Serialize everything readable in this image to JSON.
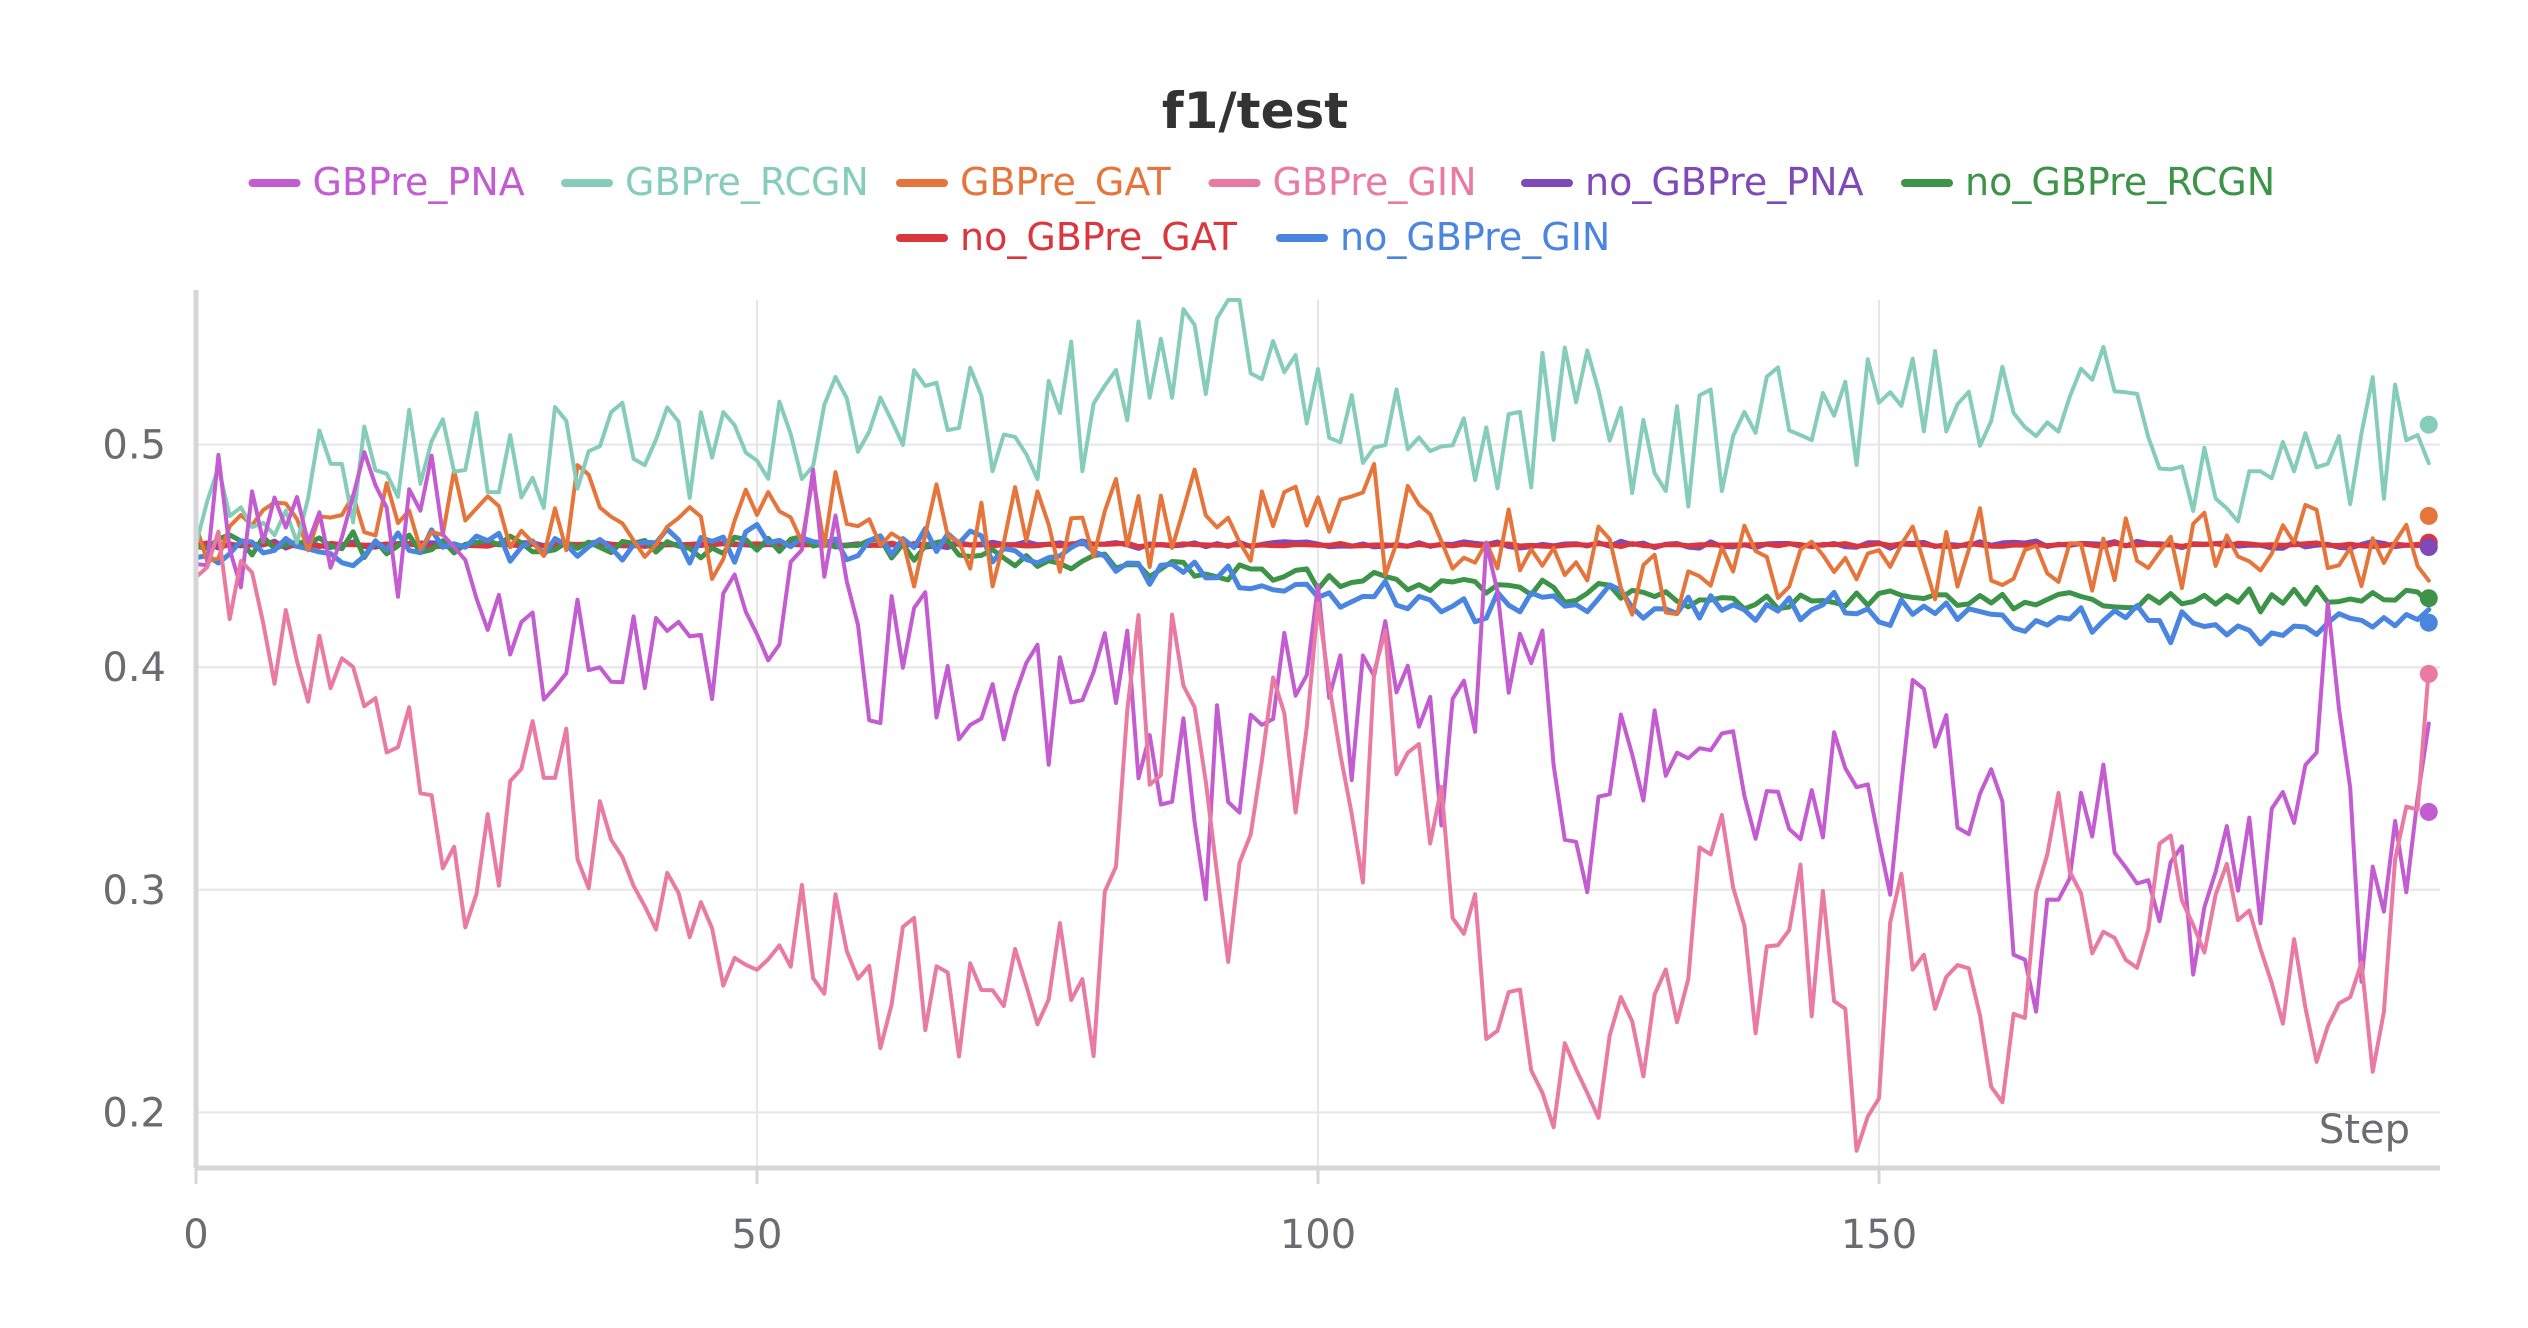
{
  "chart_data": {
    "type": "line",
    "title": "f1/test",
    "xlabel": "Step",
    "ylabel": "",
    "xlim": [
      0,
      200
    ],
    "ylim": [
      0.175,
      0.565
    ],
    "xticks": [
      0,
      50,
      100,
      150
    ],
    "yticks": [
      0.2,
      0.3,
      0.4,
      0.5
    ],
    "grid": true,
    "legend_position": "top",
    "series": [
      {
        "name": "GBPre_PNA",
        "color": "#c35bd1",
        "samples": 200,
        "mean_points": [
          [
            0,
            0.47
          ],
          [
            20,
            0.47
          ],
          [
            27,
            0.43
          ],
          [
            30,
            0.42
          ],
          [
            40,
            0.41
          ],
          [
            50,
            0.41
          ],
          [
            55,
            0.46
          ],
          [
            60,
            0.42
          ],
          [
            70,
            0.38
          ],
          [
            80,
            0.39
          ],
          [
            90,
            0.34
          ],
          [
            95,
            0.4
          ],
          [
            100,
            0.4
          ],
          [
            106,
            0.39
          ],
          [
            112,
            0.36
          ],
          [
            115,
            0.41
          ],
          [
            120,
            0.41
          ],
          [
            122,
            0.31
          ],
          [
            126,
            0.34
          ],
          [
            130,
            0.36
          ],
          [
            140,
            0.33
          ],
          [
            150,
            0.33
          ],
          [
            155,
            0.38
          ],
          [
            160,
            0.33
          ],
          [
            163,
            0.28
          ],
          [
            167,
            0.31
          ],
          [
            170,
            0.33
          ],
          [
            180,
            0.28
          ],
          [
            188,
            0.34
          ],
          [
            190,
            0.4
          ],
          [
            193,
            0.3
          ],
          [
            199,
            0.335
          ]
        ],
        "amplitude": 0.03,
        "seed": 11
      },
      {
        "name": "GBPre_RCGN",
        "color": "#86cdb9",
        "samples": 200,
        "mean_points": [
          [
            0,
            0.47
          ],
          [
            10,
            0.48
          ],
          [
            20,
            0.5
          ],
          [
            40,
            0.5
          ],
          [
            60,
            0.51
          ],
          [
            75,
            0.51
          ],
          [
            90,
            0.55
          ],
          [
            100,
            0.53
          ],
          [
            115,
            0.5
          ],
          [
            125,
            0.52
          ],
          [
            130,
            0.49
          ],
          [
            140,
            0.52
          ],
          [
            150,
            0.52
          ],
          [
            160,
            0.51
          ],
          [
            170,
            0.54
          ],
          [
            175,
            0.5
          ],
          [
            180,
            0.47
          ],
          [
            190,
            0.5
          ],
          [
            199,
            0.51
          ]
        ],
        "amplitude": 0.022,
        "seed": 23
      },
      {
        "name": "GBPre_GAT",
        "color": "#e5753a",
        "samples": 200,
        "mean_points": [
          [
            0,
            0.47
          ],
          [
            30,
            0.47
          ],
          [
            60,
            0.46
          ],
          [
            100,
            0.47
          ],
          [
            130,
            0.44
          ],
          [
            160,
            0.45
          ],
          [
            199,
            0.45
          ]
        ],
        "amplitude": 0.018,
        "seed": 37
      },
      {
        "name": "GBPre_GIN",
        "color": "#e97aa2",
        "samples": 200,
        "mean_points": [
          [
            0,
            0.47
          ],
          [
            8,
            0.42
          ],
          [
            12,
            0.4
          ],
          [
            20,
            0.38
          ],
          [
            25,
            0.3
          ],
          [
            30,
            0.38
          ],
          [
            35,
            0.31
          ],
          [
            40,
            0.3
          ],
          [
            50,
            0.28
          ],
          [
            60,
            0.26
          ],
          [
            70,
            0.25
          ],
          [
            80,
            0.25
          ],
          [
            84,
            0.38
          ],
          [
            88,
            0.4
          ],
          [
            92,
            0.3
          ],
          [
            100,
            0.4
          ],
          [
            103,
            0.3
          ],
          [
            106,
            0.4
          ],
          [
            110,
            0.34
          ],
          [
            115,
            0.25
          ],
          [
            120,
            0.22
          ],
          [
            126,
            0.21
          ],
          [
            130,
            0.24
          ],
          [
            135,
            0.32
          ],
          [
            140,
            0.26
          ],
          [
            145,
            0.28
          ],
          [
            148,
            0.2
          ],
          [
            152,
            0.28
          ],
          [
            158,
            0.26
          ],
          [
            162,
            0.23
          ],
          [
            166,
            0.33
          ],
          [
            170,
            0.28
          ],
          [
            175,
            0.3
          ],
          [
            180,
            0.28
          ],
          [
            185,
            0.27
          ],
          [
            190,
            0.25
          ],
          [
            194,
            0.22
          ],
          [
            199,
            0.4
          ]
        ],
        "amplitude": 0.03,
        "seed": 53
      },
      {
        "name": "no_GBPre_PNA",
        "color": "#8049b8",
        "samples": 200,
        "mean_points": [
          [
            0,
            0.455
          ],
          [
            199,
            0.455
          ]
        ],
        "amplitude": 0.0012,
        "seed": 61
      },
      {
        "name": "no_GBPre_RCGN",
        "color": "#3d9449",
        "samples": 200,
        "mean_points": [
          [
            0,
            0.455
          ],
          [
            60,
            0.455
          ],
          [
            80,
            0.446
          ],
          [
            100,
            0.44
          ],
          [
            120,
            0.435
          ],
          [
            140,
            0.43
          ],
          [
            160,
            0.43
          ],
          [
            180,
            0.43
          ],
          [
            199,
            0.43
          ]
        ],
        "amplitude": 0.004,
        "seed": 71
      },
      {
        "name": "no_GBPre_GAT",
        "color": "#d9363e",
        "samples": 200,
        "mean_points": [
          [
            0,
            0.455
          ],
          [
            199,
            0.455
          ]
        ],
        "amplitude": 0.0006,
        "seed": 83
      },
      {
        "name": "no_GBPre_GIN",
        "color": "#4a86df",
        "samples": 200,
        "mean_points": [
          [
            0,
            0.455
          ],
          [
            70,
            0.455
          ],
          [
            90,
            0.44
          ],
          [
            100,
            0.432
          ],
          [
            110,
            0.428
          ],
          [
            130,
            0.428
          ],
          [
            150,
            0.424
          ],
          [
            170,
            0.42
          ],
          [
            185,
            0.415
          ],
          [
            199,
            0.42
          ]
        ],
        "amplitude": 0.006,
        "seed": 97
      }
    ],
    "end_markers": [
      {
        "series": "GBPre_RCGN",
        "y": 0.509
      },
      {
        "series": "GBPre_GAT",
        "y": 0.468
      },
      {
        "series": "no_GBPre_GAT",
        "y": 0.456
      },
      {
        "series": "no_GBPre_PNA",
        "y": 0.454
      },
      {
        "series": "no_GBPre_RCGN",
        "y": 0.431
      },
      {
        "series": "no_GBPre_GIN",
        "y": 0.42
      },
      {
        "series": "GBPre_GIN",
        "y": 0.397
      },
      {
        "series": "GBPre_PNA",
        "y": 0.335
      }
    ]
  }
}
